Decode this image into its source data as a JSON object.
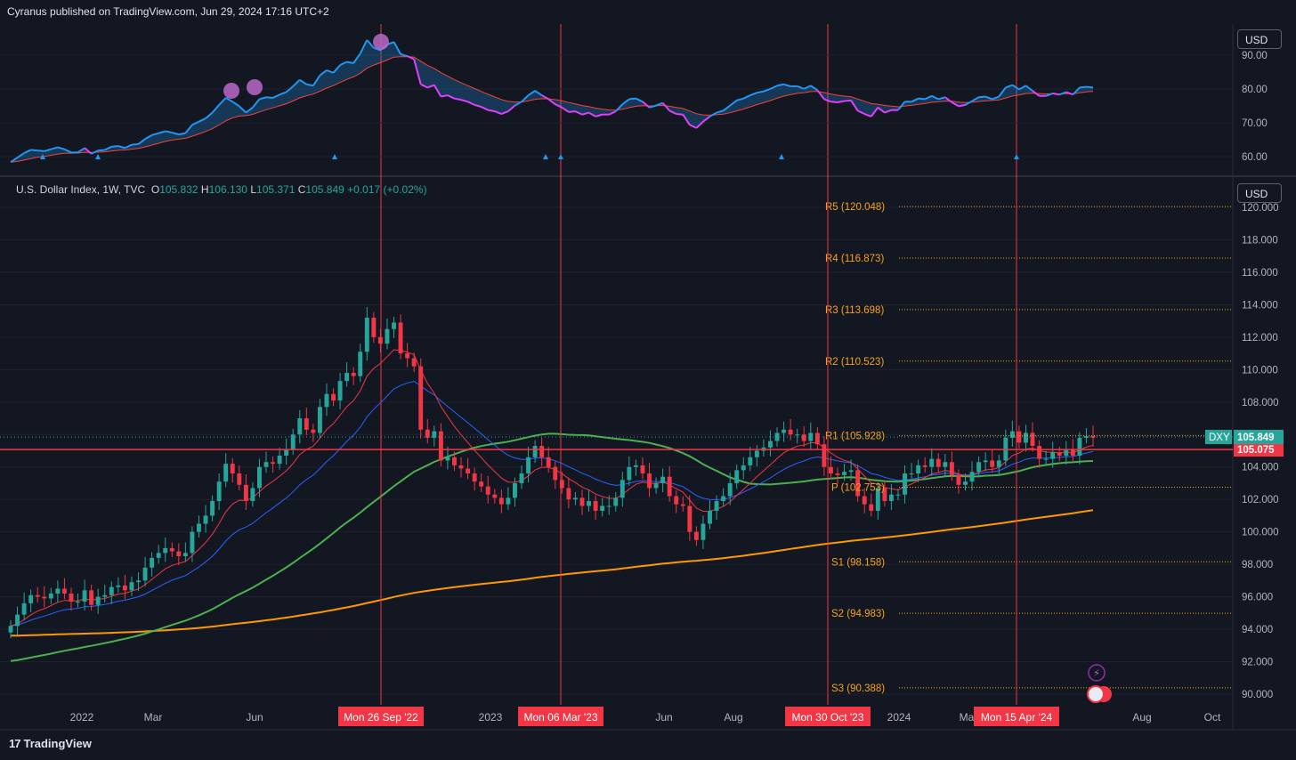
{
  "header": {
    "published": "Cyranus published on TradingView.com, Jun 29, 2024 17:16 UTC+2"
  },
  "legend": {
    "symbol": "U.S. Dollar Index, 1W, TVC",
    "o_label": "O",
    "o": "105.832",
    "h_label": "H",
    "h": "106.130",
    "l_label": "L",
    "l": "105.371",
    "c_label": "C",
    "c": "105.849",
    "change": "+0.017",
    "change_pct": "(+0.02%)"
  },
  "currency": {
    "top": "USD",
    "main": "USD"
  },
  "footer": {
    "brand": "TradingView",
    "logo": "17"
  },
  "colors": {
    "bg": "#131722",
    "up": "#26a69a",
    "down": "#f23645",
    "pivot": "#f7a21b",
    "ema_red": "#f23645",
    "ema_blue": "#2962ff",
    "sma_green": "#4caf50",
    "sma_orange": "#ff9800",
    "osc_blue": "#2196f3",
    "osc_pink": "#e040fb"
  },
  "chart_data": [
    {
      "type": "line",
      "panel": "oscillator",
      "y_ticks": [
        "90.00",
        "80.00",
        "70.00",
        "60.00"
      ],
      "ylim": [
        55,
        97
      ],
      "series": [],
      "markers": {
        "triangles": [
          "Dec 2021",
          "Jan 2022",
          "Jul 2022",
          "Feb 2023",
          "Mar 2023",
          "Oct 2023",
          "Apr 2024"
        ],
        "circles": [
          "May 2022",
          "Jun 2022",
          "Sep 2022"
        ]
      }
    },
    {
      "type": "candlestick",
      "panel": "price",
      "y_ticks": [
        "120.000",
        "118.000",
        "116.000",
        "114.000",
        "112.000",
        "110.000",
        "108.000",
        "106.000",
        "104.000",
        "102.000",
        "100.000",
        "98.000",
        "96.000",
        "94.000",
        "92.000",
        "90.000"
      ],
      "ylim": [
        89.2,
        120.6
      ],
      "x_ticks": [
        "2022",
        "Mar",
        "Jun",
        "2023",
        "Jun",
        "Aug",
        "2024",
        "Mar",
        "Aug",
        "Oct"
      ],
      "vlines": [
        {
          "label": "Mon 26 Sep '22"
        },
        {
          "label": "Mon 06 Mar '23"
        },
        {
          "label": "Mon 30 Oct '23"
        },
        {
          "label": "Mon 15 Apr '24"
        }
      ],
      "pivots": [
        {
          "label": "R5 (120.048)",
          "value": 120.048
        },
        {
          "label": "R4 (116.873)",
          "value": 116.873
        },
        {
          "label": "R3 (113.698)",
          "value": 113.698
        },
        {
          "label": "R2 (110.523)",
          "value": 110.523
        },
        {
          "label": "R1 (105.928)",
          "value": 105.928
        },
        {
          "label": "P (102.753)",
          "value": 102.753
        },
        {
          "label": "S1 (98.158)",
          "value": 98.158
        },
        {
          "label": "S2 (94.983)",
          "value": 94.983
        },
        {
          "label": "S3 (90.388)",
          "value": 90.388
        }
      ],
      "hline": {
        "value": 105.075,
        "label": "105.075"
      },
      "last_price": {
        "symbol": "DXY",
        "value": 105.849,
        "label": "105.849"
      },
      "closes": [
        94.2,
        94.9,
        95.6,
        96.1,
        96.0,
        95.9,
        96.2,
        96.5,
        96.2,
        95.7,
        95.7,
        96.4,
        95.5,
        96.0,
        96.1,
        96.6,
        96.7,
        96.4,
        96.9,
        97.0,
        97.8,
        98.4,
        98.7,
        99.0,
        98.8,
        98.5,
        98.7,
        100.0,
        100.5,
        101.0,
        101.9,
        103.1,
        104.2,
        103.6,
        102.9,
        101.9,
        102.7,
        104.0,
        104.3,
        104.2,
        104.7,
        105.1,
        106.0,
        107.0,
        106.3,
        106.1,
        107.7,
        108.5,
        108.1,
        109.3,
        109.8,
        109.6,
        111.1,
        113.2,
        112.0,
        111.6,
        112.5,
        112.9,
        111.0,
        110.7,
        110.2,
        106.3,
        105.8,
        106.2,
        104.4,
        104.6,
        104.1,
        103.9,
        103.6,
        103.1,
        102.8,
        102.3,
        102.1,
        101.7,
        102.1,
        103.0,
        103.6,
        104.6,
        105.3,
        104.6,
        104.0,
        103.2,
        102.7,
        102.0,
        102.1,
        101.6,
        101.9,
        101.3,
        101.6,
        101.6,
        102.1,
        103.2,
        104.0,
        104.1,
        103.6,
        102.7,
        103.0,
        103.4,
        102.2,
        101.7,
        101.6,
        100.0,
        99.5,
        100.5,
        101.3,
        101.9,
        102.2,
        103.0,
        103.8,
        104.1,
        104.6,
        105.0,
        105.2,
        105.6,
        106.1,
        106.3,
        106.0,
        106.0,
        105.6,
        106.1,
        105.4,
        104.0,
        103.6,
        103.5,
        103.7,
        103.8,
        102.2,
        101.7,
        101.3,
        102.7,
        101.9,
        102.3,
        102.3,
        103.6,
        103.6,
        104.1,
        104.0,
        104.5,
        104.0,
        104.3,
        103.5,
        102.9,
        103.1,
        103.7,
        104.3,
        104.4,
        104.0,
        104.4,
        105.8,
        106.2,
        105.5,
        106.1,
        105.3,
        104.5,
        104.5,
        104.9,
        104.7,
        105.1,
        104.7,
        105.8,
        105.9,
        105.8
      ]
    }
  ]
}
